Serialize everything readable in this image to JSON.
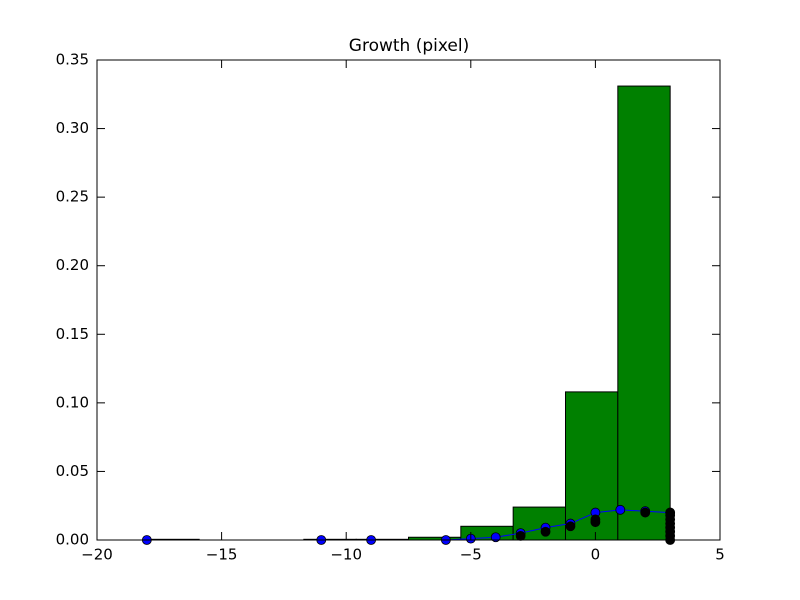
{
  "chart_data": {
    "type": "histogram",
    "title": "Growth (pixel)",
    "bins": [
      -18,
      -15.9,
      -13.8,
      -11.7,
      -9.6,
      -7.5,
      -5.4,
      -3.3,
      -1.2,
      0.9,
      3
    ],
    "values": [
      0.0005,
      0,
      0,
      0.0005,
      0.0005,
      0.002,
      0.01,
      0.024,
      0.108,
      0.331
    ],
    "color": "#008000",
    "series": [
      {
        "type": "line",
        "color": "#0000ff",
        "x": [
          -18,
          -11,
          -9,
          -6,
          -5,
          -4,
          -3,
          -2,
          -1,
          0,
          1,
          2,
          3
        ],
        "values": [
          0,
          0,
          0,
          0,
          0.001,
          0.002,
          0.005,
          0.009,
          0.012,
          0.02,
          0.022,
          0.021,
          0.02
        ]
      },
      {
        "type": "scatter",
        "color": "#000000",
        "x": [
          -3,
          -2,
          -1,
          0,
          0,
          2,
          3,
          3,
          3,
          3,
          3,
          3,
          3,
          3
        ],
        "values": [
          0.003,
          0.006,
          0.01,
          0.013,
          0.015,
          0.02,
          0,
          0.003,
          0.006,
          0.009,
          0.012,
          0.015,
          0.018,
          0.02
        ]
      }
    ],
    "xlim": [
      -20,
      5
    ],
    "ylim": [
      0,
      0.35
    ],
    "xticks": [
      {
        "value": -20,
        "label": "−20"
      },
      {
        "value": -15,
        "label": "−15"
      },
      {
        "value": -10,
        "label": "−10"
      },
      {
        "value": -5,
        "label": "−5"
      },
      0,
      5
    ],
    "yticks": [
      {
        "value": 0,
        "label": "0.00"
      },
      0.05,
      {
        "value": 0.1,
        "label": "0.10"
      },
      0.15,
      {
        "value": 0.2,
        "label": "0.20"
      },
      0.25,
      {
        "value": 0.3,
        "label": "0.30"
      },
      0.35
    ]
  }
}
